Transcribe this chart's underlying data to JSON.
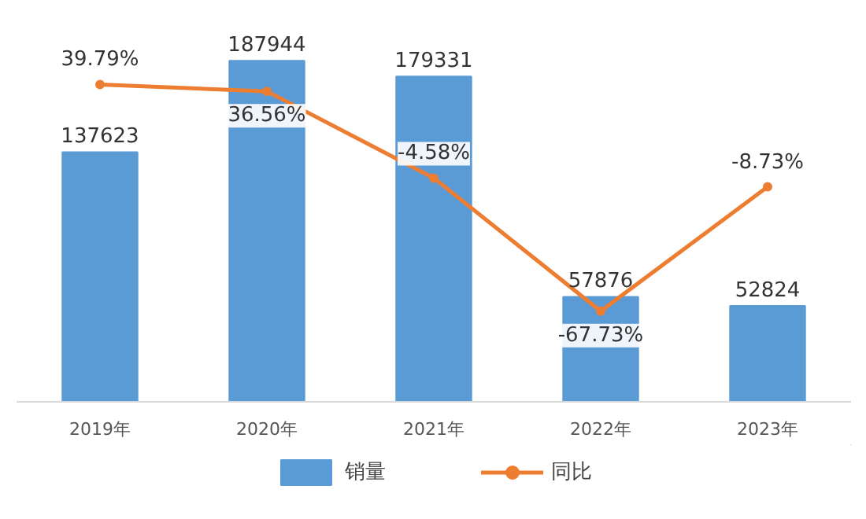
{
  "chart_data": {
    "type": "bar",
    "categories": [
      "2019年",
      "2020年",
      "2021年",
      "2022年",
      "2023年"
    ],
    "series": [
      {
        "name": "销量",
        "color": "#5b9bd5",
        "values": [
          137623,
          187944,
          179331,
          57876,
          52824
        ]
      },
      {
        "name": "同比",
        "type": "line",
        "axis": "y2",
        "color": "#ed7d31",
        "values": [
          39.79,
          36.56,
          -4.58,
          -67.73,
          -8.73
        ],
        "value_labels": [
          "39.79%",
          "36.56%",
          "-4.58%",
          "-67.73%",
          "-8.73%"
        ]
      }
    ],
    "data_labels": true,
    "tick_labels": "x",
    "legend": "bottom",
    "marker": "circle"
  }
}
